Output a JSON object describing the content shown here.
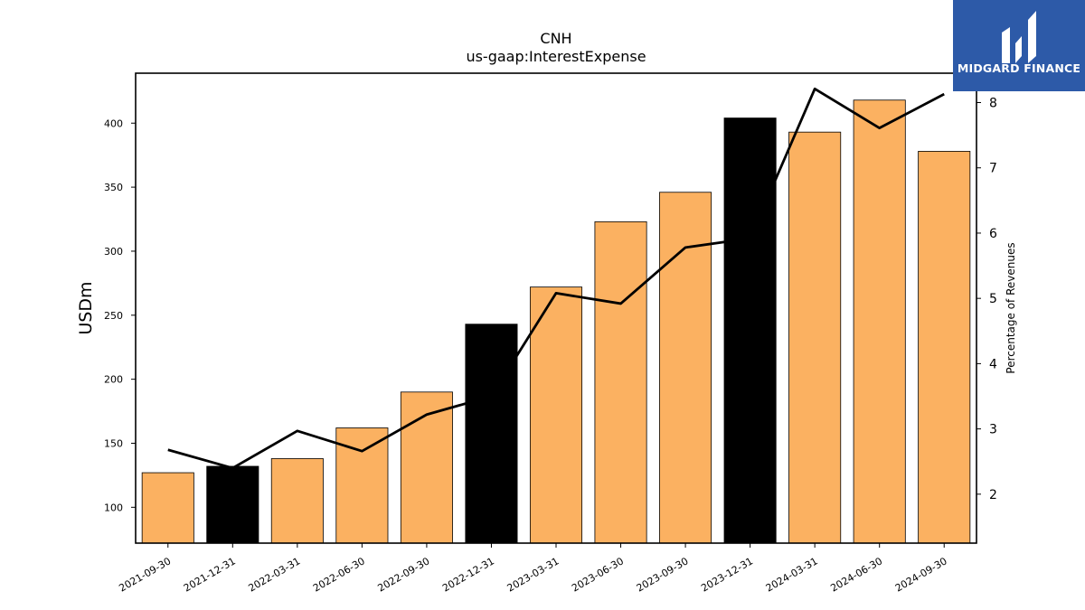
{
  "chart_data": {
    "type": "bar",
    "title": "CNH",
    "subtitle": "us-gaap:InterestExpense",
    "ylabel": "USDm",
    "y2label": "Percentage of Revenues",
    "categories": [
      "2021-09-30",
      "2021-12-31",
      "2022-03-31",
      "2022-06-30",
      "2022-09-30",
      "2022-12-31",
      "2023-03-31",
      "2023-06-30",
      "2023-09-30",
      "2023-12-31",
      "2024-03-31",
      "2024-06-30",
      "2024-09-30"
    ],
    "series": [
      {
        "type": "bar",
        "values": [
          127,
          132,
          138,
          162,
          190,
          243,
          272,
          323,
          346,
          404,
          393,
          418,
          378
        ],
        "colors": [
          "#fbb161",
          "#000000",
          "#fbb161",
          "#fbb161",
          "#fbb161",
          "#000000",
          "#fbb161",
          "#fbb161",
          "#fbb161",
          "#000000",
          "#fbb161",
          "#fbb161",
          "#fbb161"
        ]
      },
      {
        "type": "line",
        "axis": "right",
        "color": "#000000",
        "values": [
          2.68,
          2.4,
          2.97,
          2.66,
          3.22,
          3.5,
          5.08,
          4.92,
          5.78,
          5.92,
          8.21,
          7.61,
          8.13
        ]
      }
    ],
    "ylim": [
      72,
      439
    ],
    "y_ticks": [
      100,
      150,
      200,
      250,
      300,
      350,
      400
    ],
    "y2lim": [
      1.25,
      8.45
    ],
    "y2_ticks": [
      2,
      3,
      4,
      5,
      6,
      7,
      8
    ],
    "grid": false,
    "legend": "none"
  },
  "watermark": {
    "text": "MIDGARD FINANCE",
    "background": "#2d5aa8"
  }
}
